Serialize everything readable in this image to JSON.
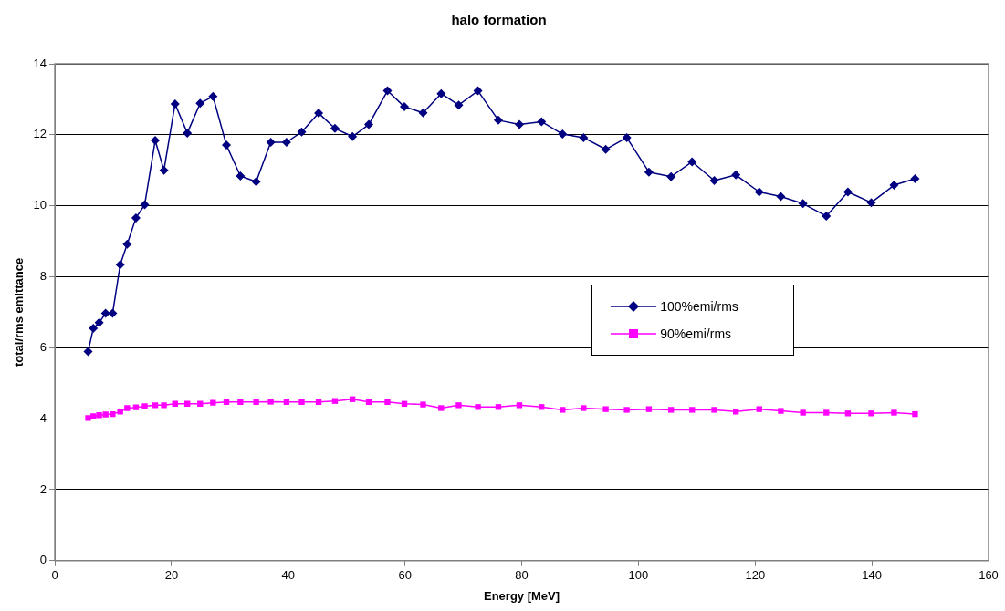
{
  "chart_data": {
    "type": "line",
    "title": "halo formation",
    "xlabel": "Energy [MeV]",
    "ylabel": "total/rms emittance",
    "x": [
      5.7,
      6.6,
      7.6,
      8.7,
      9.9,
      11.2,
      12.4,
      13.9,
      15.4,
      17.2,
      18.7,
      20.6,
      22.7,
      24.9,
      27.1,
      29.4,
      31.8,
      34.5,
      37.0,
      39.7,
      42.3,
      45.2,
      48.0,
      51.0,
      53.8,
      57.0,
      59.9,
      63.1,
      66.2,
      69.2,
      72.5,
      76.0,
      79.6,
      83.4,
      87.0,
      90.6,
      94.4,
      98.0,
      101.8,
      105.6,
      109.2,
      113.0,
      116.7,
      120.7,
      124.4,
      128.2,
      132.2,
      135.9,
      139.9,
      143.8,
      147.4
    ],
    "series": [
      {
        "name": "100%emi/rms",
        "color": "#000080",
        "marker": "diamond",
        "values": [
          5.89,
          6.55,
          6.71,
          6.97,
          6.97,
          8.34,
          8.92,
          9.66,
          10.03,
          11.84,
          11.0,
          12.87,
          12.05,
          12.89,
          13.08,
          11.71,
          10.84,
          10.68,
          11.79,
          11.79,
          12.08,
          12.61,
          12.18,
          11.95,
          12.29,
          13.24,
          12.79,
          12.62,
          13.16,
          12.84,
          13.24,
          12.41,
          12.29,
          12.37,
          12.02,
          11.92,
          11.59,
          11.92,
          10.95,
          10.82,
          11.24,
          10.71,
          10.87,
          10.39,
          10.26,
          10.06,
          9.71,
          10.39,
          10.09,
          10.58,
          10.76
        ]
      },
      {
        "name": "90%emi/rms",
        "color": "#ff00ff",
        "marker": "square",
        "values": [
          4.02,
          4.07,
          4.1,
          4.12,
          4.13,
          4.2,
          4.3,
          4.32,
          4.35,
          4.38,
          4.38,
          4.42,
          4.42,
          4.42,
          4.45,
          4.47,
          4.47,
          4.47,
          4.48,
          4.47,
          4.47,
          4.47,
          4.5,
          4.55,
          4.47,
          4.47,
          4.42,
          4.4,
          4.3,
          4.38,
          4.33,
          4.33,
          4.38,
          4.33,
          4.25,
          4.3,
          4.27,
          4.25,
          4.27,
          4.25,
          4.25,
          4.25,
          4.2,
          4.27,
          4.22,
          4.17,
          4.17,
          4.15,
          4.15,
          4.17,
          4.13
        ]
      }
    ],
    "xlim": [
      0,
      160
    ],
    "xticks": [
      0,
      20,
      40,
      60,
      80,
      100,
      120,
      140,
      160
    ],
    "ylim": [
      0,
      14
    ],
    "yticks": [
      0,
      2,
      4,
      6,
      8,
      10,
      12,
      14
    ],
    "grid": "y",
    "legend": "right"
  }
}
